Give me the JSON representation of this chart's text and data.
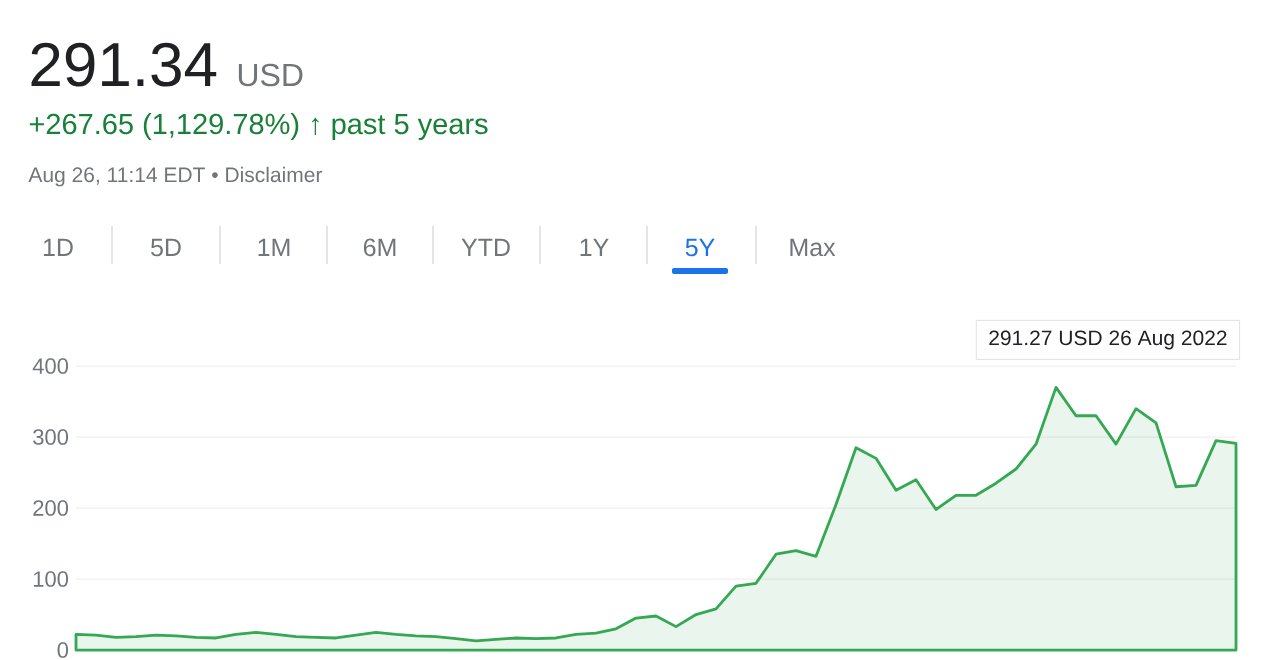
{
  "chart_data": {
    "type": "area",
    "title": "291.34",
    "subtitle": "+267.65 (1,129.78%) ↑ past 5 years",
    "annotations": [
      "USD",
      "Aug 26, 11:14 EDT • Disclaimer",
      "1D",
      "5D",
      "1M",
      "6M",
      "YTD",
      "1Y",
      "5Y",
      "Max",
      "291.27 USD  26 Aug 2022"
    ],
    "categories": [
      null,
      null,
      null,
      null,
      null,
      null,
      null,
      null,
      null,
      null,
      null,
      null,
      null,
      null,
      null,
      null,
      null,
      null,
      null,
      null,
      null,
      null,
      null,
      null,
      null,
      null,
      null,
      null,
      null,
      null,
      null,
      null,
      null,
      null,
      null,
      null,
      null,
      null,
      null,
      null,
      null,
      null,
      null,
      null,
      null,
      null,
      null,
      null,
      null,
      null,
      null,
      null,
      null,
      null,
      null,
      null,
      null,
      null,
      null
    ],
    "values": [
      22,
      21,
      18,
      19,
      21,
      20,
      18,
      17,
      22,
      25,
      22,
      19,
      18,
      17,
      21,
      25,
      22,
      20,
      19,
      16,
      13,
      15,
      17,
      16,
      17,
      22,
      24,
      30,
      45,
      48,
      33,
      50,
      58,
      90,
      94,
      135,
      140,
      132,
      205,
      285,
      270,
      225,
      240,
      198,
      218,
      218,
      235,
      255,
      290,
      370,
      330,
      330,
      290,
      340,
      320,
      230,
      232,
      295,
      291
    ],
    "color": "#34a853",
    "ylim": [
      0,
      400
    ],
    "yticks": [
      0,
      100,
      200,
      300,
      400
    ],
    "grid": "y",
    "tick_labels": "y"
  }
}
